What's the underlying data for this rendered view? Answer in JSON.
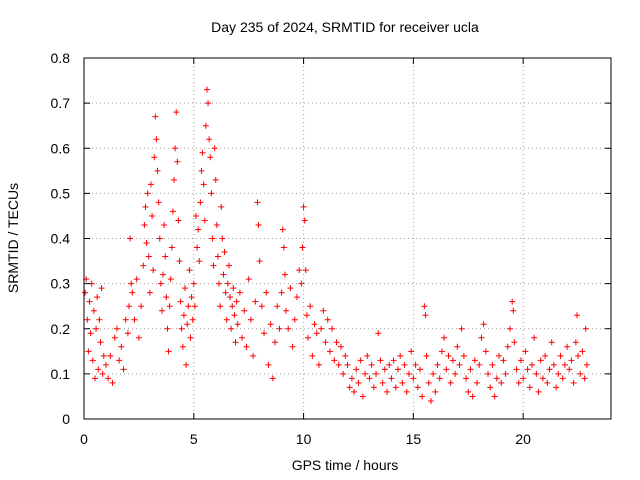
{
  "chart_data": {
    "type": "scatter",
    "title": "Day 235 of 2024, SRMTID for receiver ucla",
    "xlabel": "GPS time / hours",
    "ylabel": "SRMTID / TECUs",
    "xlim": [
      0,
      24
    ],
    "ylim": [
      0,
      0.8
    ],
    "xticks": [
      0,
      5,
      10,
      15,
      20
    ],
    "yticks": [
      0,
      0.1,
      0.2,
      0.3,
      0.4,
      0.5,
      0.6,
      0.7,
      0.8
    ],
    "xtick_labels": [
      "0",
      "5",
      "10",
      "15",
      "20"
    ],
    "ytick_labels": [
      "0",
      "0.1",
      "0.2",
      "0.3",
      "0.4",
      "0.5",
      "0.6",
      "0.7",
      "0.8"
    ],
    "grid": true,
    "marker": "+",
    "color": "#ff0000",
    "series": [
      {
        "name": "SRMTID",
        "points": [
          [
            0.05,
            0.28
          ],
          [
            0.1,
            0.31
          ],
          [
            0.15,
            0.22
          ],
          [
            0.2,
            0.15
          ],
          [
            0.25,
            0.26
          ],
          [
            0.3,
            0.19
          ],
          [
            0.35,
            0.3
          ],
          [
            0.4,
            0.13
          ],
          [
            0.45,
            0.24
          ],
          [
            0.5,
            0.09
          ],
          [
            0.55,
            0.2
          ],
          [
            0.6,
            0.27
          ],
          [
            0.65,
            0.11
          ],
          [
            0.7,
            0.22
          ],
          [
            0.75,
            0.17
          ],
          [
            0.8,
            0.29
          ],
          [
            0.85,
            0.1
          ],
          [
            0.9,
            0.14
          ],
          [
            1.0,
            0.12
          ],
          [
            1.1,
            0.09
          ],
          [
            1.2,
            0.14
          ],
          [
            1.3,
            0.08
          ],
          [
            1.4,
            0.18
          ],
          [
            1.5,
            0.2
          ],
          [
            1.6,
            0.13
          ],
          [
            1.7,
            0.16
          ],
          [
            1.8,
            0.11
          ],
          [
            1.9,
            0.22
          ],
          [
            2.0,
            0.19
          ],
          [
            2.05,
            0.25
          ],
          [
            2.1,
            0.4
          ],
          [
            2.15,
            0.3
          ],
          [
            2.2,
            0.28
          ],
          [
            2.3,
            0.22
          ],
          [
            2.4,
            0.31
          ],
          [
            2.5,
            0.18
          ],
          [
            2.6,
            0.25
          ],
          [
            2.7,
            0.34
          ],
          [
            2.75,
            0.43
          ],
          [
            2.8,
            0.47
          ],
          [
            2.85,
            0.39
          ],
          [
            2.9,
            0.5
          ],
          [
            2.95,
            0.36
          ],
          [
            3.0,
            0.28
          ],
          [
            3.05,
            0.52
          ],
          [
            3.1,
            0.45
          ],
          [
            3.15,
            0.33
          ],
          [
            3.2,
            0.58
          ],
          [
            3.25,
            0.67
          ],
          [
            3.3,
            0.62
          ],
          [
            3.35,
            0.55
          ],
          [
            3.4,
            0.48
          ],
          [
            3.45,
            0.4
          ],
          [
            3.5,
            0.3
          ],
          [
            3.55,
            0.24
          ],
          [
            3.6,
            0.32
          ],
          [
            3.65,
            0.43
          ],
          [
            3.7,
            0.36
          ],
          [
            3.75,
            0.27
          ],
          [
            3.8,
            0.2
          ],
          [
            3.85,
            0.15
          ],
          [
            3.9,
            0.25
          ],
          [
            3.95,
            0.31
          ],
          [
            4.0,
            0.38
          ],
          [
            4.05,
            0.46
          ],
          [
            4.1,
            0.53
          ],
          [
            4.15,
            0.6
          ],
          [
            4.2,
            0.68
          ],
          [
            4.25,
            0.57
          ],
          [
            4.3,
            0.44
          ],
          [
            4.35,
            0.35
          ],
          [
            4.4,
            0.26
          ],
          [
            4.45,
            0.2
          ],
          [
            4.5,
            0.16
          ],
          [
            4.55,
            0.23
          ],
          [
            4.6,
            0.29
          ],
          [
            4.65,
            0.12
          ],
          [
            4.7,
            0.21
          ],
          [
            4.75,
            0.25
          ],
          [
            4.8,
            0.33
          ],
          [
            4.85,
            0.18
          ],
          [
            4.9,
            0.27
          ],
          [
            4.95,
            0.22
          ],
          [
            5.0,
            0.3
          ],
          [
            5.05,
            0.25
          ],
          [
            5.1,
            0.45
          ],
          [
            5.15,
            0.38
          ],
          [
            5.2,
            0.42
          ],
          [
            5.25,
            0.35
          ],
          [
            5.3,
            0.48
          ],
          [
            5.35,
            0.55
          ],
          [
            5.4,
            0.59
          ],
          [
            5.45,
            0.52
          ],
          [
            5.5,
            0.44
          ],
          [
            5.55,
            0.65
          ],
          [
            5.6,
            0.73
          ],
          [
            5.65,
            0.7
          ],
          [
            5.7,
            0.62
          ],
          [
            5.75,
            0.58
          ],
          [
            5.8,
            0.5
          ],
          [
            5.85,
            0.4
          ],
          [
            5.9,
            0.34
          ],
          [
            5.95,
            0.6
          ],
          [
            6.0,
            0.53
          ],
          [
            6.05,
            0.43
          ],
          [
            6.1,
            0.36
          ],
          [
            6.15,
            0.3
          ],
          [
            6.2,
            0.25
          ],
          [
            6.25,
            0.47
          ],
          [
            6.3,
            0.4
          ],
          [
            6.35,
            0.32
          ],
          [
            6.4,
            0.37
          ],
          [
            6.45,
            0.28
          ],
          [
            6.5,
            0.22
          ],
          [
            6.55,
            0.3
          ],
          [
            6.6,
            0.34
          ],
          [
            6.65,
            0.27
          ],
          [
            6.7,
            0.2
          ],
          [
            6.75,
            0.25
          ],
          [
            6.8,
            0.29
          ],
          [
            6.85,
            0.23
          ],
          [
            6.9,
            0.17
          ],
          [
            6.95,
            0.26
          ],
          [
            7.0,
            0.21
          ],
          [
            7.1,
            0.28
          ],
          [
            7.2,
            0.18
          ],
          [
            7.3,
            0.24
          ],
          [
            7.4,
            0.16
          ],
          [
            7.5,
            0.31
          ],
          [
            7.6,
            0.22
          ],
          [
            7.7,
            0.14
          ],
          [
            7.8,
            0.26
          ],
          [
            7.9,
            0.48
          ],
          [
            7.95,
            0.43
          ],
          [
            8.0,
            0.35
          ],
          [
            8.1,
            0.25
          ],
          [
            8.2,
            0.19
          ],
          [
            8.3,
            0.28
          ],
          [
            8.4,
            0.12
          ],
          [
            8.5,
            0.21
          ],
          [
            8.6,
            0.09
          ],
          [
            8.7,
            0.17
          ],
          [
            8.8,
            0.25
          ],
          [
            8.9,
            0.2
          ],
          [
            9.0,
            0.28
          ],
          [
            9.05,
            0.42
          ],
          [
            9.1,
            0.38
          ],
          [
            9.15,
            0.32
          ],
          [
            9.2,
            0.24
          ],
          [
            9.3,
            0.2
          ],
          [
            9.4,
            0.29
          ],
          [
            9.5,
            0.16
          ],
          [
            9.6,
            0.22
          ],
          [
            9.7,
            0.27
          ],
          [
            9.8,
            0.33
          ],
          [
            9.9,
            0.3
          ],
          [
            9.95,
            0.38
          ],
          [
            10.0,
            0.47
          ],
          [
            10.05,
            0.44
          ],
          [
            10.1,
            0.33
          ],
          [
            10.15,
            0.23
          ],
          [
            10.2,
            0.18
          ],
          [
            10.3,
            0.25
          ],
          [
            10.4,
            0.14
          ],
          [
            10.5,
            0.21
          ],
          [
            10.6,
            0.19
          ],
          [
            10.7,
            0.12
          ],
          [
            10.8,
            0.2
          ],
          [
            10.9,
            0.24
          ],
          [
            11.0,
            0.17
          ],
          [
            11.1,
            0.22
          ],
          [
            11.2,
            0.15
          ],
          [
            11.3,
            0.2
          ],
          [
            11.4,
            0.13
          ],
          [
            11.5,
            0.17
          ],
          [
            11.6,
            0.12
          ],
          [
            11.7,
            0.16
          ],
          [
            11.8,
            0.1
          ],
          [
            11.9,
            0.14
          ],
          [
            12.0,
            0.12
          ],
          [
            12.1,
            0.07
          ],
          [
            12.2,
            0.09
          ],
          [
            12.3,
            0.06
          ],
          [
            12.4,
            0.11
          ],
          [
            12.5,
            0.08
          ],
          [
            12.6,
            0.13
          ],
          [
            12.7,
            0.05
          ],
          [
            12.8,
            0.1
          ],
          [
            12.9,
            0.14
          ],
          [
            13.0,
            0.09
          ],
          [
            13.1,
            0.12
          ],
          [
            13.2,
            0.07
          ],
          [
            13.3,
            0.1
          ],
          [
            13.4,
            0.19
          ],
          [
            13.5,
            0.13
          ],
          [
            13.6,
            0.08
          ],
          [
            13.7,
            0.11
          ],
          [
            13.8,
            0.06
          ],
          [
            13.9,
            0.12
          ],
          [
            14.0,
            0.09
          ],
          [
            14.1,
            0.13
          ],
          [
            14.2,
            0.07
          ],
          [
            14.3,
            0.11
          ],
          [
            14.4,
            0.14
          ],
          [
            14.5,
            0.08
          ],
          [
            14.6,
            0.12
          ],
          [
            14.7,
            0.06
          ],
          [
            14.8,
            0.1
          ],
          [
            14.9,
            0.15
          ],
          [
            15.0,
            0.09
          ],
          [
            15.1,
            0.12
          ],
          [
            15.2,
            0.07
          ],
          [
            15.3,
            0.11
          ],
          [
            15.4,
            0.05
          ],
          [
            15.5,
            0.25
          ],
          [
            15.55,
            0.23
          ],
          [
            15.6,
            0.14
          ],
          [
            15.7,
            0.08
          ],
          [
            15.8,
            0.04
          ],
          [
            15.9,
            0.1
          ],
          [
            16.0,
            0.06
          ],
          [
            16.1,
            0.12
          ],
          [
            16.2,
            0.09
          ],
          [
            16.3,
            0.15
          ],
          [
            16.4,
            0.18
          ],
          [
            16.5,
            0.11
          ],
          [
            16.6,
            0.14
          ],
          [
            16.7,
            0.08
          ],
          [
            16.8,
            0.13
          ],
          [
            16.9,
            0.1
          ],
          [
            17.0,
            0.16
          ],
          [
            17.1,
            0.12
          ],
          [
            17.2,
            0.2
          ],
          [
            17.3,
            0.14
          ],
          [
            17.4,
            0.09
          ],
          [
            17.5,
            0.06
          ],
          [
            17.6,
            0.11
          ],
          [
            17.7,
            0.05
          ],
          [
            17.8,
            0.13
          ],
          [
            17.9,
            0.08
          ],
          [
            18.0,
            0.12
          ],
          [
            18.1,
            0.18
          ],
          [
            18.2,
            0.21
          ],
          [
            18.3,
            0.15
          ],
          [
            18.4,
            0.1
          ],
          [
            18.5,
            0.07
          ],
          [
            18.6,
            0.12
          ],
          [
            18.7,
            0.05
          ],
          [
            18.8,
            0.09
          ],
          [
            18.9,
            0.14
          ],
          [
            19.0,
            0.08
          ],
          [
            19.1,
            0.13
          ],
          [
            19.2,
            0.1
          ],
          [
            19.3,
            0.16
          ],
          [
            19.4,
            0.2
          ],
          [
            19.5,
            0.26
          ],
          [
            19.55,
            0.24
          ],
          [
            19.6,
            0.17
          ],
          [
            19.7,
            0.11
          ],
          [
            19.8,
            0.08
          ],
          [
            19.9,
            0.13
          ],
          [
            20.0,
            0.09
          ],
          [
            20.1,
            0.15
          ],
          [
            20.2,
            0.11
          ],
          [
            20.3,
            0.07
          ],
          [
            20.4,
            0.12
          ],
          [
            20.5,
            0.18
          ],
          [
            20.6,
            0.1
          ],
          [
            20.7,
            0.06
          ],
          [
            20.8,
            0.13
          ],
          [
            20.9,
            0.09
          ],
          [
            21.0,
            0.14
          ],
          [
            21.1,
            0.08
          ],
          [
            21.2,
            0.11
          ],
          [
            21.3,
            0.17
          ],
          [
            21.4,
            0.12
          ],
          [
            21.5,
            0.07
          ],
          [
            21.6,
            0.1
          ],
          [
            21.7,
            0.14
          ],
          [
            21.8,
            0.09
          ],
          [
            21.9,
            0.12
          ],
          [
            22.0,
            0.16
          ],
          [
            22.1,
            0.11
          ],
          [
            22.2,
            0.13
          ],
          [
            22.3,
            0.08
          ],
          [
            22.4,
            0.17
          ],
          [
            22.45,
            0.23
          ],
          [
            22.5,
            0.14
          ],
          [
            22.6,
            0.1
          ],
          [
            22.7,
            0.15
          ],
          [
            22.8,
            0.09
          ],
          [
            22.85,
            0.2
          ],
          [
            22.9,
            0.12
          ]
        ]
      }
    ]
  }
}
